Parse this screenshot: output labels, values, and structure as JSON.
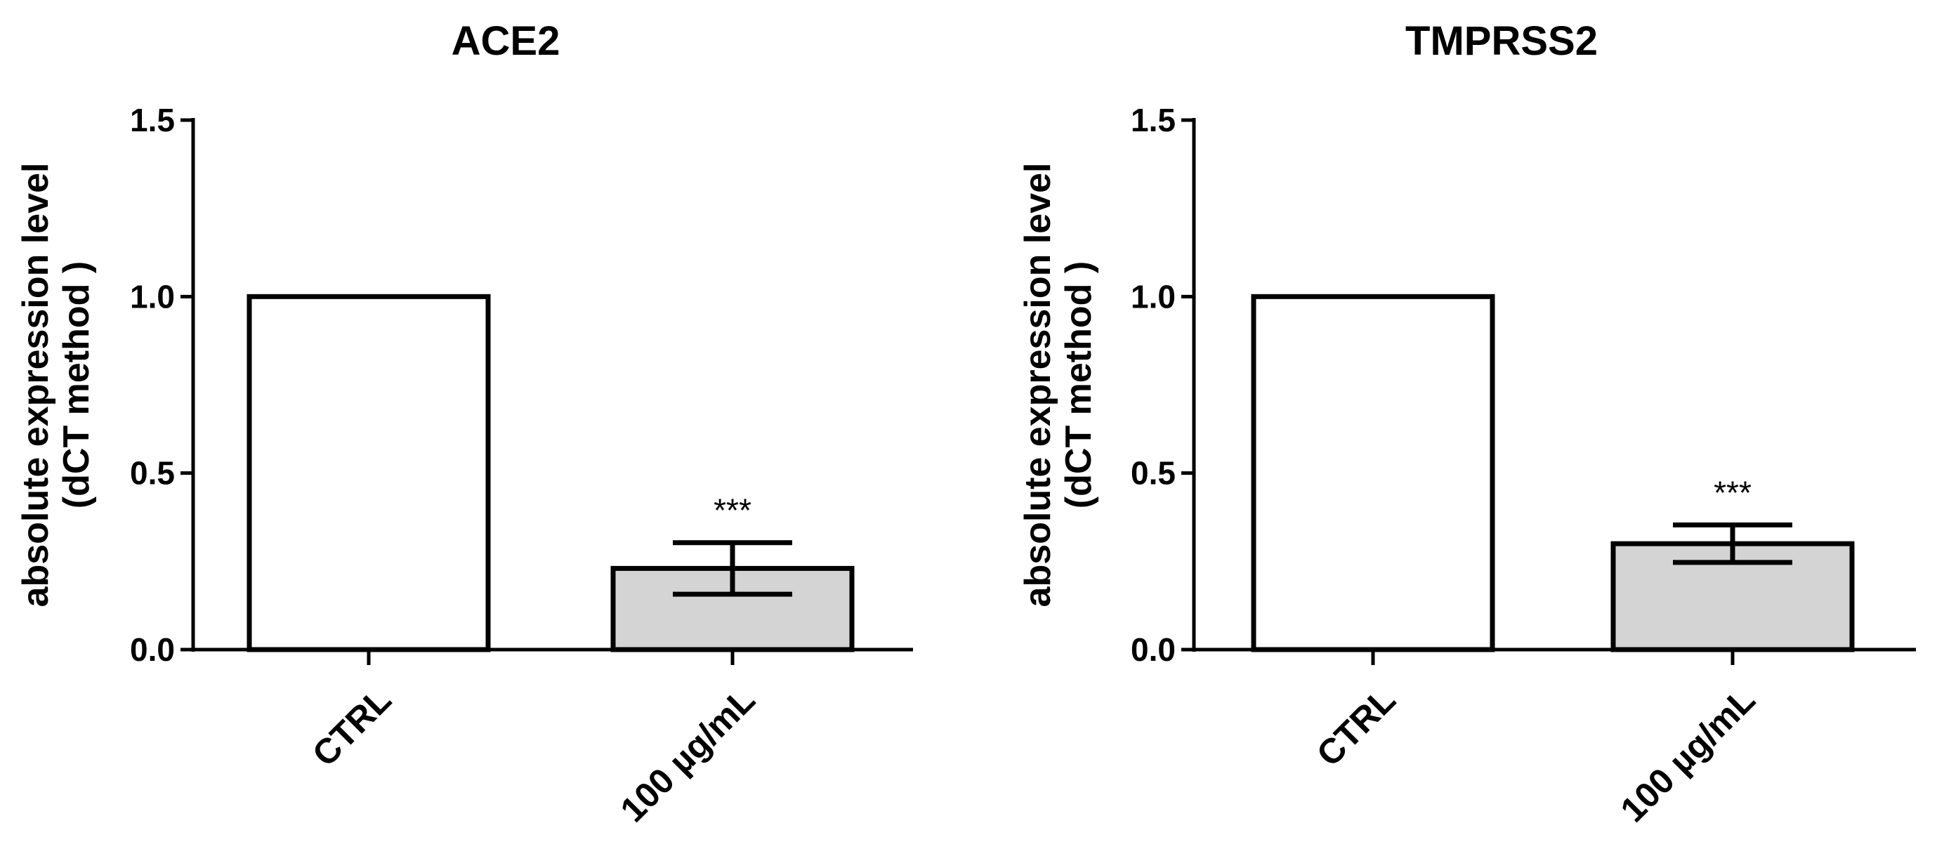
{
  "chart_data": [
    {
      "type": "bar",
      "title": "ACE2",
      "ylabel_lines": [
        "absolute expression level",
        "(dCT method )"
      ],
      "categories": [
        "CTRL",
        "100 µg/mL"
      ],
      "values": [
        1.0,
        0.23
      ],
      "errors": [
        null,
        0.073
      ],
      "annotations": [
        "",
        "***"
      ],
      "bar_colors": [
        "#ffffff",
        "#d4d4d4"
      ],
      "ylim": [
        0,
        1.5
      ],
      "yticks": [
        "0.0",
        "0.5",
        "1.0",
        "1.5"
      ],
      "grid": false,
      "legend": "none"
    },
    {
      "type": "bar",
      "title": "TMPRSS2",
      "ylabel_lines": [
        "absolute expression level",
        "(dCT method )"
      ],
      "categories": [
        "CTRL",
        "100 µg/mL"
      ],
      "values": [
        1.0,
        0.3
      ],
      "errors": [
        null,
        0.053
      ],
      "annotations": [
        "",
        "***"
      ],
      "bar_colors": [
        "#ffffff",
        "#d4d4d4"
      ],
      "ylim": [
        0,
        1.5
      ],
      "yticks": [
        "0.0",
        "0.5",
        "1.0",
        "1.5"
      ],
      "grid": false,
      "legend": "none"
    }
  ]
}
